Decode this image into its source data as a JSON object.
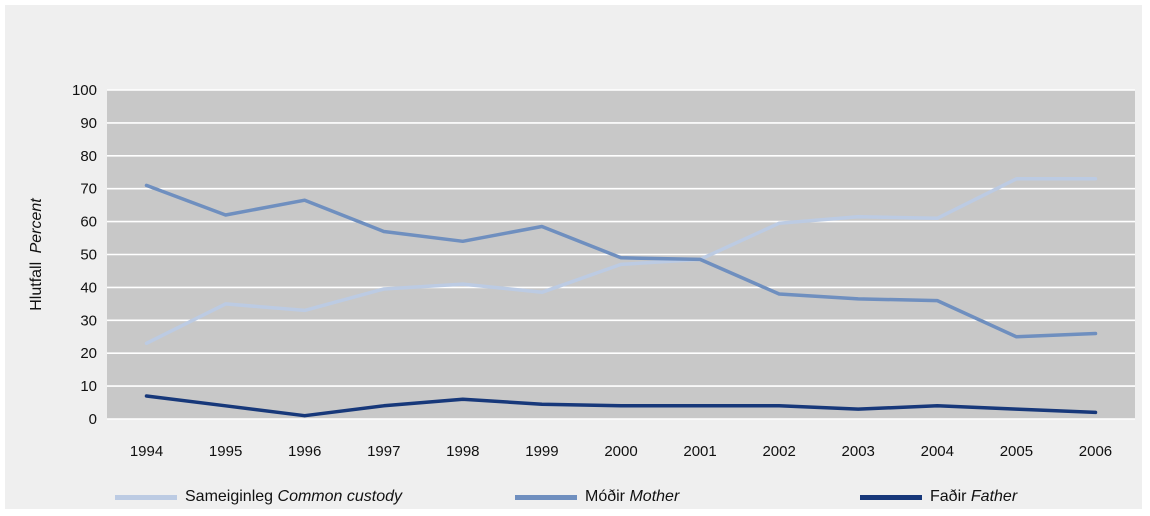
{
  "chart_data": {
    "type": "line",
    "ylabel": {
      "is": "Hlutfall",
      "en": "Percent"
    },
    "ylim": [
      0,
      100
    ],
    "yticks": [
      "0",
      "10",
      "20",
      "30",
      "40",
      "50",
      "60",
      "70",
      "80",
      "90",
      "100"
    ],
    "x": [
      "1994",
      "1995",
      "1996",
      "1997",
      "1998",
      "1999",
      "2000",
      "2001",
      "2002",
      "2003",
      "2004",
      "2005",
      "2006"
    ],
    "grid": true,
    "legend_position": "bottom",
    "series": [
      {
        "key": "common",
        "name_is": "Sameiginleg",
        "name_en": "Common custody",
        "color": "#bccbe3",
        "values": [
          23,
          35,
          33,
          39.5,
          41,
          38.5,
          47,
          48.5,
          59.5,
          61.5,
          61,
          73,
          73
        ]
      },
      {
        "key": "mother",
        "name_is": "Móðir",
        "name_en": "Mother",
        "color": "#6f8fbf",
        "values": [
          71,
          62,
          66.5,
          57,
          54,
          58.5,
          49,
          48.5,
          38,
          36.5,
          36,
          25,
          26
        ]
      },
      {
        "key": "father",
        "name_is": "Faðir",
        "name_en": "Father",
        "color": "#17387a",
        "values": [
          7,
          4,
          1,
          4,
          6,
          4.5,
          4,
          4,
          4,
          3,
          4,
          3,
          2
        ]
      }
    ]
  }
}
